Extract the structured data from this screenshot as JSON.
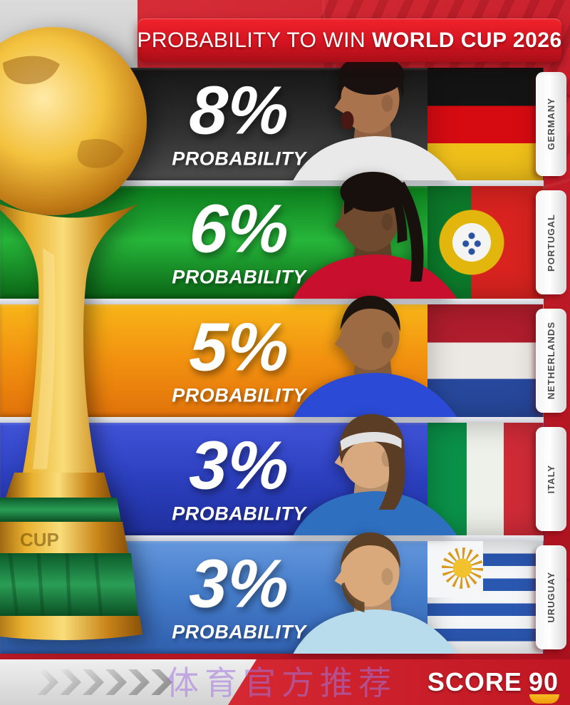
{
  "header": {
    "title_prefix": "PROBABILITY TO WIN",
    "title_emphasis": "WORLD CUP 2026"
  },
  "rows": [
    {
      "country": "GERMANY",
      "percent": "8%",
      "label": "PROBABILITY",
      "flag": "germany",
      "bar": {
        "top": "#161616",
        "mid": "#2c2c2c",
        "bottom": "#4c4c4c"
      },
      "player": {
        "style": "afro",
        "skin": "#a9734e",
        "hair": "#181110",
        "jersey": "#e9e9e9"
      }
    },
    {
      "country": "PORTUGAL",
      "percent": "6%",
      "label": "PROBABILITY",
      "flag": "portugal",
      "bar": {
        "top": "#0b7a1b",
        "mid": "#27b63a",
        "bottom": "#0a6415"
      },
      "player": {
        "style": "dreads",
        "skin": "#6f4a2e",
        "hair": "#17100c",
        "jersey": "#c8102e"
      }
    },
    {
      "country": "NETHERLANDS",
      "percent": "5%",
      "label": "PROBABILITY",
      "flag": "netherlands",
      "bar": {
        "top": "#f8b518",
        "mid": "#f29210",
        "bottom": "#e1720a"
      },
      "player": {
        "style": "fade",
        "skin": "#9c6b44",
        "hair": "#1b130e",
        "jersey": "#2b4bd7"
      }
    },
    {
      "country": "ITALY",
      "percent": "3%",
      "label": "PROBABILITY",
      "flag": "italy",
      "bar": {
        "top": "#4053d8",
        "mid": "#2c40bf",
        "bottom": "#1f2f9d"
      },
      "player": {
        "style": "headband",
        "skin": "#d8a87e",
        "hair": "#5a3d24",
        "jersey": "#2e6fc0"
      }
    },
    {
      "country": "URUGUAY",
      "percent": "3%",
      "label": "PROBABILITY",
      "flag": "uruguay",
      "bar": {
        "top": "#6396dc",
        "mid": "#447cca",
        "bottom": "#305fae"
      },
      "player": {
        "style": "beard",
        "skin": "#d9a97c",
        "hair": "#5c4026",
        "jersey": "#b8dcec"
      }
    }
  ],
  "footer": {
    "watermark": "体育官方推荐",
    "brand_name": "SCORE",
    "brand_number": "90",
    "chevron_count": 6
  },
  "icons": {
    "trophy": "world-cup-trophy",
    "chevron": "chevron-right-icon",
    "brand_smile": "score90-smile-icon"
  },
  "colors": {
    "background_red": "#c41d29",
    "banner_red": "#d31420",
    "tab_white": "#ffffff",
    "gap_light": "#dde0e4",
    "smile_yellow": "#f2a51c",
    "watermark_purple": "rgba(162,116,222,0.55)"
  }
}
